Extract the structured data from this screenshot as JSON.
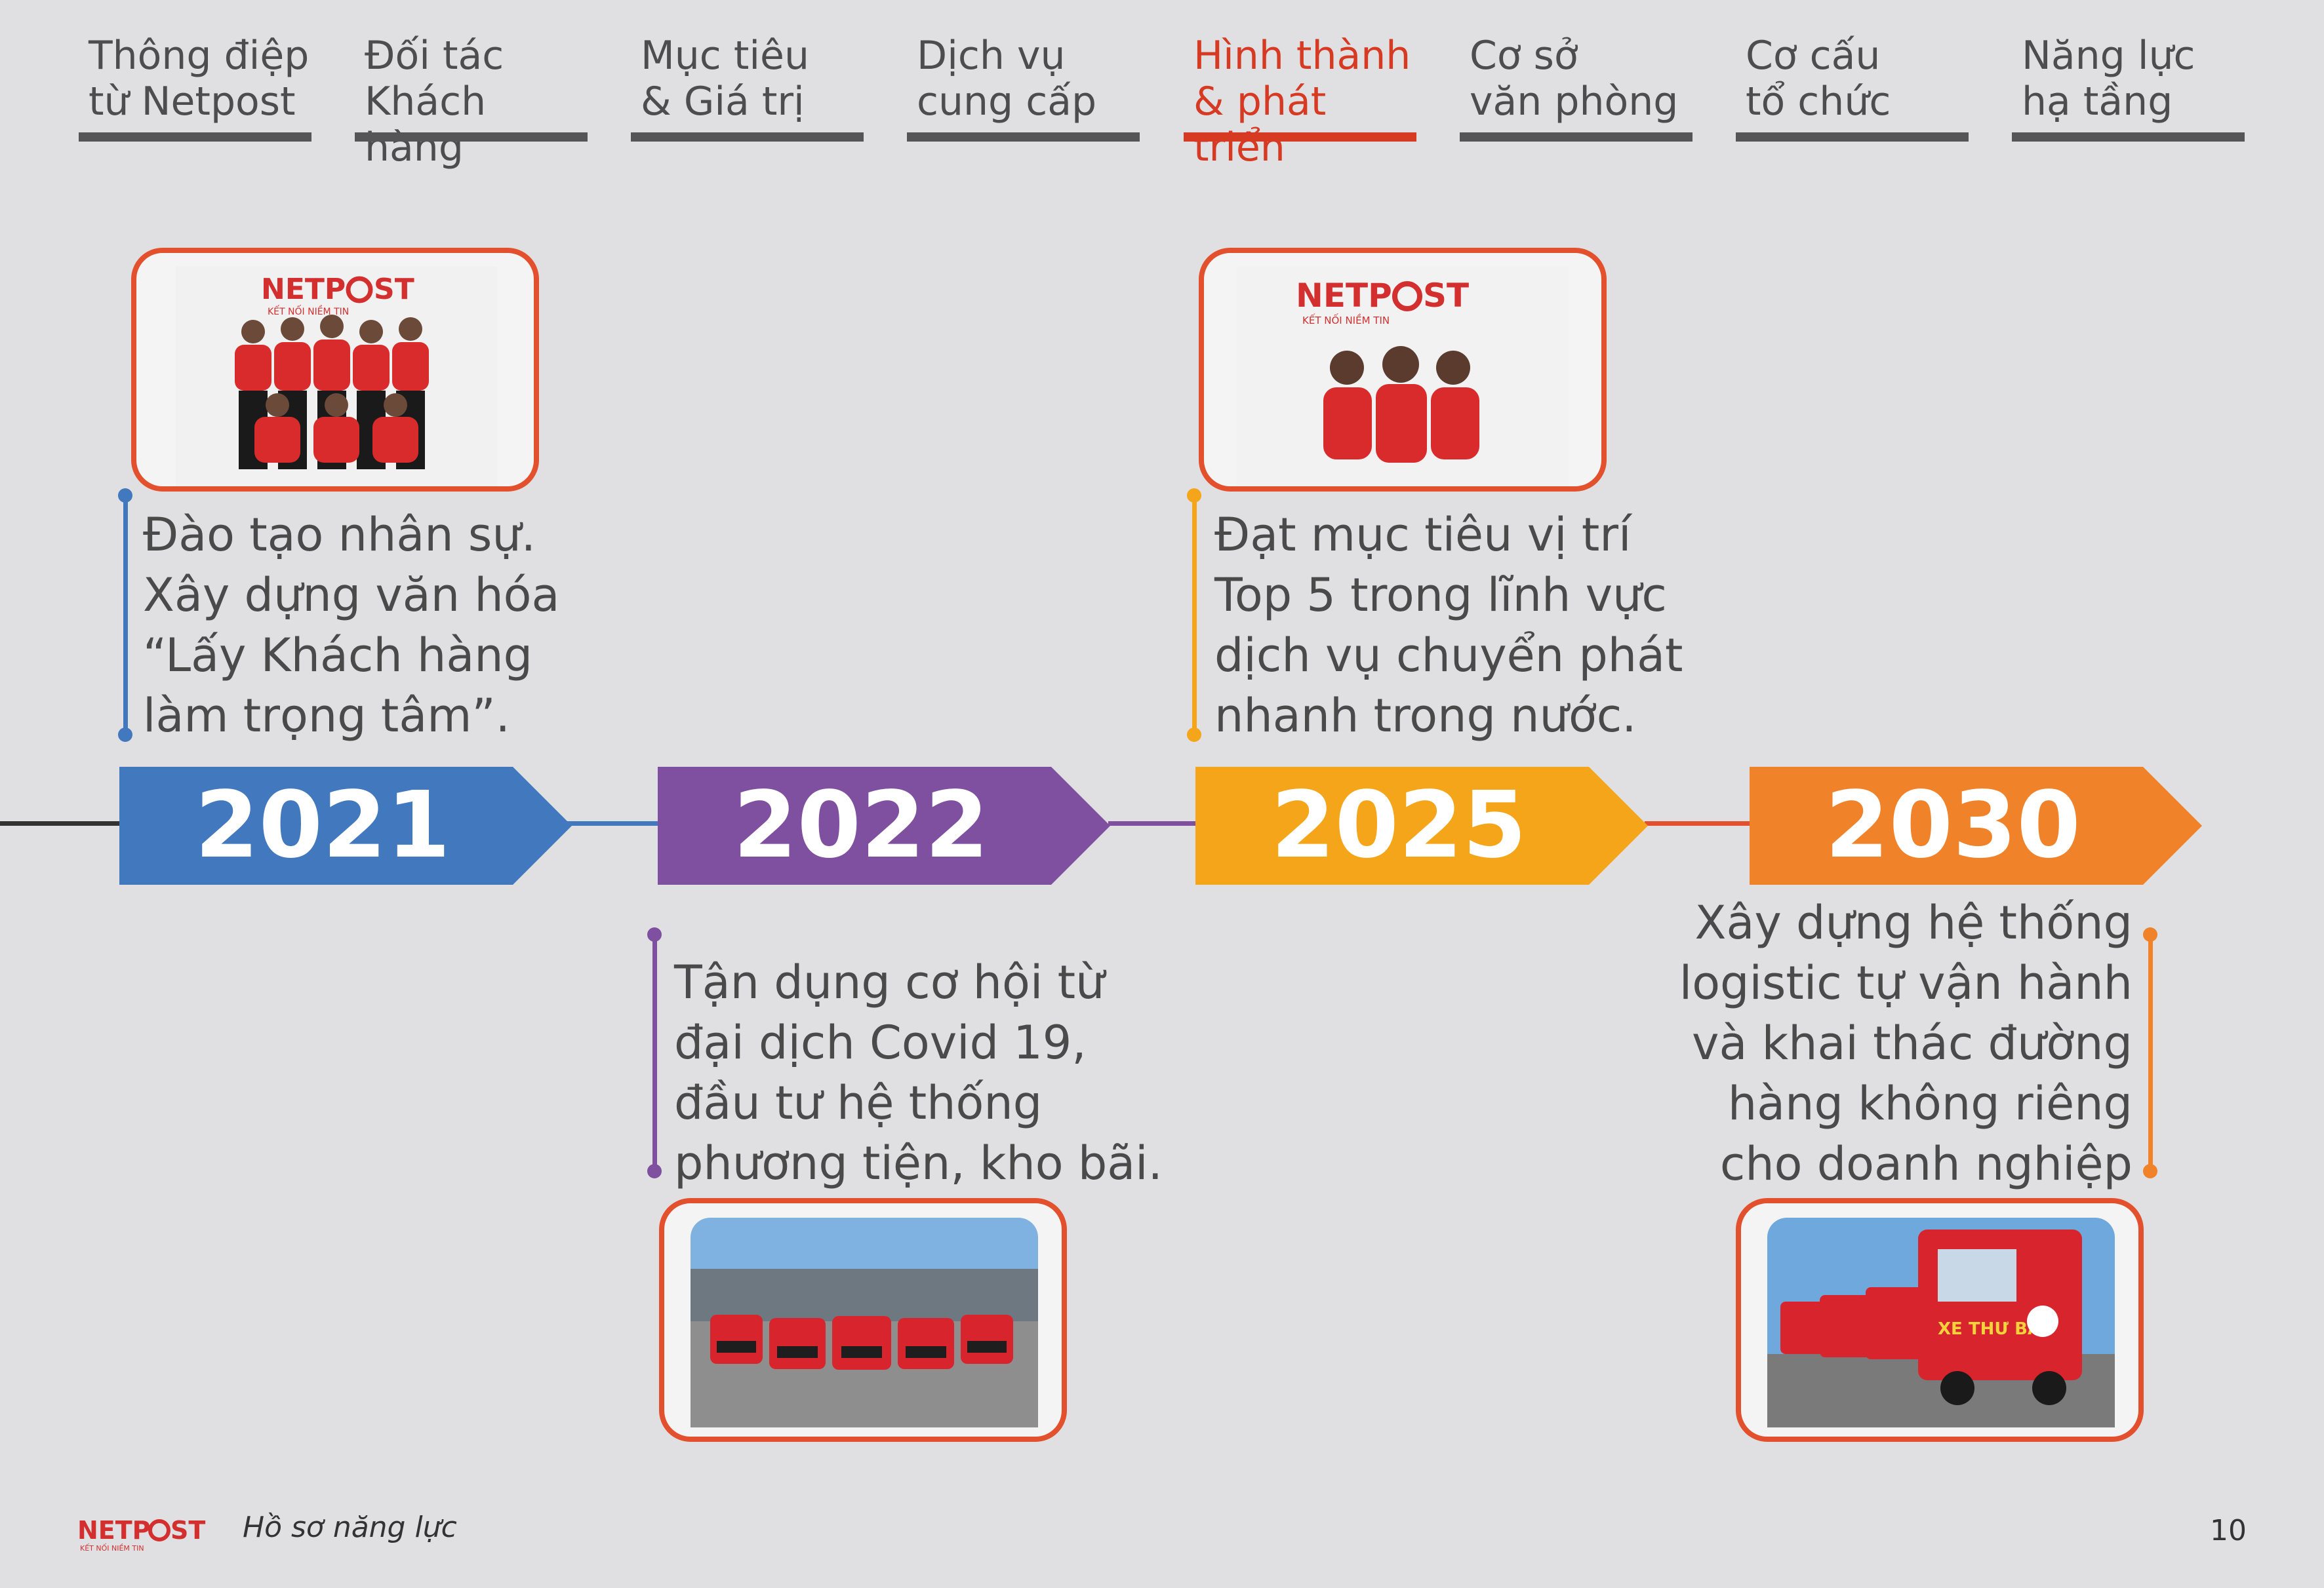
{
  "nav": {
    "tabs": [
      {
        "label": "Thông điệp\ntừ Netpost",
        "active": false
      },
      {
        "label": "Đối tác\nKhách hàng",
        "active": false
      },
      {
        "label": "Mục tiêu\n& Giá trị",
        "active": false
      },
      {
        "label": "Dịch vụ\ncung cấp",
        "active": false
      },
      {
        "label": "Hình thành\n& phát triển",
        "active": true
      },
      {
        "label": "Cơ sở\nvăn phòng",
        "active": false
      },
      {
        "label": "Cơ cấu\ntổ chức",
        "active": false
      },
      {
        "label": "Năng lực\nhạ tầng",
        "active": false
      }
    ],
    "active_color": "#d63a23",
    "inactive_color": "#555557"
  },
  "timeline": {
    "milestones": [
      {
        "year": "2021",
        "color": "#4278be",
        "text": "Đào tạo nhân sự.\nXây dựng văn hóa\n“Lấy Khách hàng\nlàm trọng tâm”.",
        "photo": "team-photo"
      },
      {
        "year": "2022",
        "color": "#7f4fa0",
        "text": "Tận dụng cơ hội từ\nđại dịch Covid 19,\nđầu tư hệ thống\nphương tiện, kho bãi.",
        "photo": "vans-photo"
      },
      {
        "year": "2025",
        "color": "#f5a519",
        "text": "Đạt mục tiêu vị trí\nTop 5 trong lĩnh vực\ndịch vụ chuyển phát\nnhanh trong nước.",
        "photo": "staff-photo"
      },
      {
        "year": "2030",
        "color": "#f0822a",
        "text": "Xây dựng hệ thống\nlogistic tự vận hành\nvà khai thác đường\nhàng không riêng\ncho doanh nghiệp",
        "photo": "trucks-photo"
      }
    ],
    "connector_colors": [
      "#4278be",
      "#7f4fa0",
      "#e2502d"
    ],
    "lead_line_color": "#333333"
  },
  "logos": {
    "brand_left": "NETP",
    "brand_right": "ST",
    "tagline": "KẾT NỐI NIỀM TIN",
    "truck_text": "XE THƯ BÁO"
  },
  "footer": {
    "title": "Hồ sơ năng lực",
    "page_number": "10"
  },
  "frame_color": "#e2502d"
}
